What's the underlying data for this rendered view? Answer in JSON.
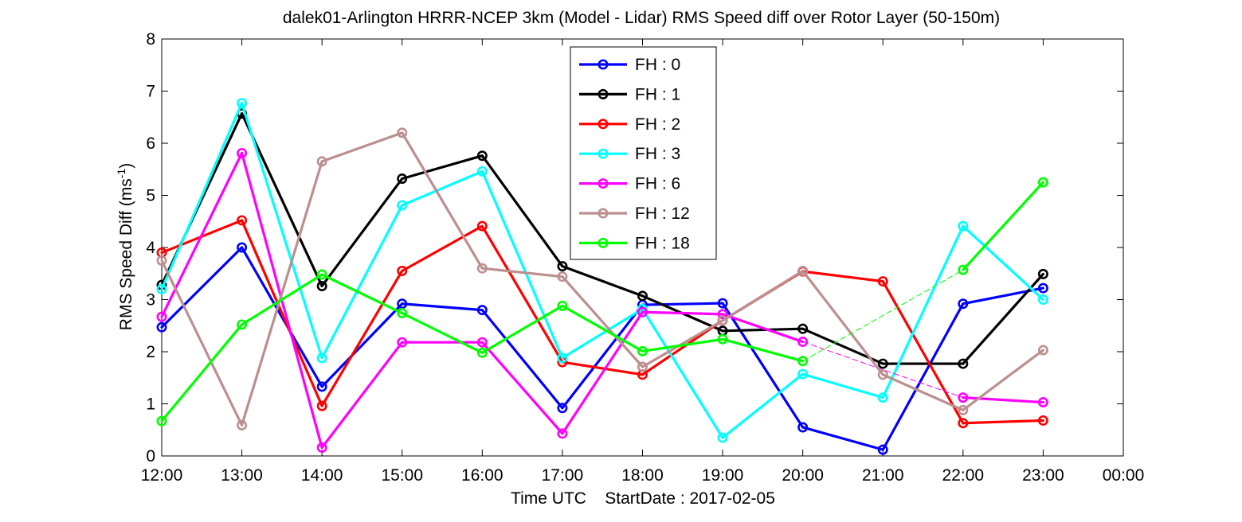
{
  "chart_data": {
    "type": "line",
    "title": "dalek01-Arlington HRRR-NCEP 3km (Model - Lidar) RMS Speed diff over Rotor Layer (50-150m)",
    "xlabel": "Time UTC    StartDate : 2017-02-05",
    "ylabel": "RMS Speed Diff (ms",
    "ylabel_sup": "-1",
    "ylabel_end": ")",
    "x_tick_labels": [
      "12:00",
      "13:00",
      "14:00",
      "15:00",
      "16:00",
      "17:00",
      "18:00",
      "19:00",
      "20:00",
      "21:00",
      "22:00",
      "23:00",
      "00:00"
    ],
    "y_tick_labels": [
      "0",
      "1",
      "2",
      "3",
      "4",
      "5",
      "6",
      "7",
      "8"
    ],
    "xlim": [
      "12:00",
      "00:00"
    ],
    "ylim": [
      0,
      8
    ],
    "grid": false,
    "legend_position": "top-center",
    "series": [
      {
        "name": "FH : 0",
        "color": "#0000ff",
        "x": [
          "12:00",
          "13:00",
          "14:00",
          "15:00",
          "16:00",
          "17:00",
          "18:00",
          "19:00",
          "20:00",
          "21:00",
          "22:00",
          "23:00"
        ],
        "values": [
          2.47,
          4.0,
          1.33,
          2.92,
          2.8,
          0.92,
          2.9,
          2.93,
          0.55,
          0.12,
          2.92,
          3.22
        ]
      },
      {
        "name": "FH : 1",
        "color": "#000000",
        "x": [
          "12:00",
          "13:00",
          "14:00",
          "15:00",
          "16:00",
          "17:00",
          "18:00",
          "19:00",
          "20:00",
          "21:00",
          "22:00",
          "23:00"
        ],
        "values": [
          3.28,
          6.57,
          3.26,
          5.32,
          5.76,
          3.64,
          3.07,
          2.4,
          2.44,
          1.77,
          1.77,
          3.49
        ]
      },
      {
        "name": "FH : 2",
        "color": "#ff0000",
        "x": [
          "12:00",
          "13:00",
          "14:00",
          "15:00",
          "16:00",
          "17:00",
          "18:00",
          "19:00",
          "20:00",
          "21:00",
          "22:00",
          "23:00"
        ],
        "values": [
          3.9,
          4.52,
          0.96,
          3.55,
          4.41,
          1.8,
          1.56,
          2.6,
          3.54,
          3.35,
          0.63,
          0.68
        ]
      },
      {
        "name": "FH : 3",
        "color": "#00ffff",
        "x": [
          "12:00",
          "13:00",
          "14:00",
          "15:00",
          "16:00",
          "17:00",
          "18:00",
          "19:00",
          "20:00",
          "21:00",
          "22:00",
          "23:00"
        ],
        "values": [
          3.2,
          6.77,
          1.88,
          4.81,
          5.46,
          1.88,
          2.82,
          0.35,
          1.57,
          1.12,
          4.41,
          3.0
        ]
      },
      {
        "name": "FH : 6",
        "color": "#ff00ff",
        "x": [
          "12:00",
          "13:00",
          "14:00",
          "15:00",
          "16:00",
          "17:00",
          "18:00",
          "19:00",
          "20:00",
          "22:00",
          "23:00"
        ],
        "values": [
          2.67,
          5.81,
          0.16,
          2.18,
          2.18,
          0.43,
          2.76,
          2.72,
          2.19,
          1.12,
          1.03
        ],
        "gaps": [
          [
            "20:00",
            "22:00"
          ]
        ]
      },
      {
        "name": "FH : 12",
        "color": "#bc8f8f",
        "x": [
          "12:00",
          "13:00",
          "14:00",
          "15:00",
          "16:00",
          "17:00",
          "18:00",
          "19:00",
          "20:00",
          "21:00",
          "22:00",
          "23:00"
        ],
        "values": [
          3.75,
          0.59,
          5.65,
          6.2,
          3.6,
          3.44,
          1.71,
          2.6,
          3.55,
          1.56,
          0.88,
          2.03
        ]
      },
      {
        "name": "FH : 18",
        "color": "#00ff00",
        "x": [
          "12:00",
          "13:00",
          "14:00",
          "15:00",
          "16:00",
          "17:00",
          "18:00",
          "19:00",
          "20:00",
          "22:00",
          "23:00"
        ],
        "values": [
          0.67,
          2.52,
          3.48,
          2.74,
          1.98,
          2.88,
          2.01,
          2.24,
          1.82,
          3.57,
          5.25
        ],
        "gaps": [
          [
            "20:00",
            "22:00"
          ]
        ]
      }
    ]
  }
}
